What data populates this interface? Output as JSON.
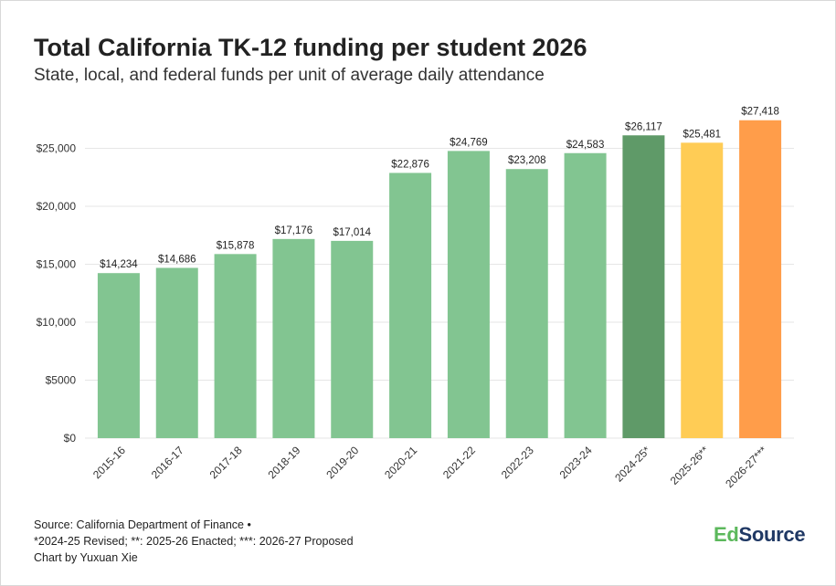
{
  "page": {
    "title": "Total California TK-12 funding per student 2026",
    "subtitle": "State, local, and federal funds per unit of average daily attendance"
  },
  "footer": {
    "source": "Source: California Department of Finance •",
    "notes": "*2024-25 Revised; **: 2025-26 Enacted; ***: 2026-27 Proposed",
    "credit": "Chart by Yuxuan Xie"
  },
  "logo": {
    "part1": "Ed",
    "part2": "Source",
    "color_ed": "#5cb85c",
    "color_source": "#1f3864"
  },
  "colors": {
    "bar_default": "#82c591",
    "bar_revised": "#5f9a68",
    "bar_enacted": "#ffcc55",
    "bar_proposed": "#ff9d4a",
    "grid": "#e6e6e6",
    "axis_text": "#333333"
  },
  "chart_data": {
    "type": "bar",
    "title": "Total California TK-12 funding per student 2026",
    "subtitle": "State, local, and federal funds per unit of average daily attendance",
    "xlabel": "",
    "ylabel": "",
    "ylim": [
      0,
      28500
    ],
    "yticks": [
      0,
      5000,
      10000,
      15000,
      20000,
      25000
    ],
    "ytick_labels": [
      "$0",
      "$5000",
      "$10,000",
      "$15,000",
      "$20,000",
      "$25,000"
    ],
    "grid": true,
    "categories": [
      "2015-16",
      "2016-17",
      "2017-18",
      "2018-19",
      "2019-20",
      "2020-21",
      "2021-22",
      "2022-23",
      "2023-24",
      "2024-25*",
      "2025-26**",
      "2026-27***"
    ],
    "values": [
      14234,
      14686,
      15878,
      17176,
      17014,
      22876,
      24769,
      23208,
      24583,
      26117,
      25481,
      27418
    ],
    "data_labels": [
      "$14,234",
      "$14,686",
      "$15,878",
      "$17,176",
      "$17,014",
      "$22,876",
      "$24,769",
      "$23,208",
      "$24,583",
      "$26,117",
      "$25,481",
      "$27,418"
    ],
    "bar_colors": [
      "#82c591",
      "#82c591",
      "#82c591",
      "#82c591",
      "#82c591",
      "#82c591",
      "#82c591",
      "#82c591",
      "#82c591",
      "#5f9a68",
      "#ffcc55",
      "#ff9d4a"
    ]
  }
}
